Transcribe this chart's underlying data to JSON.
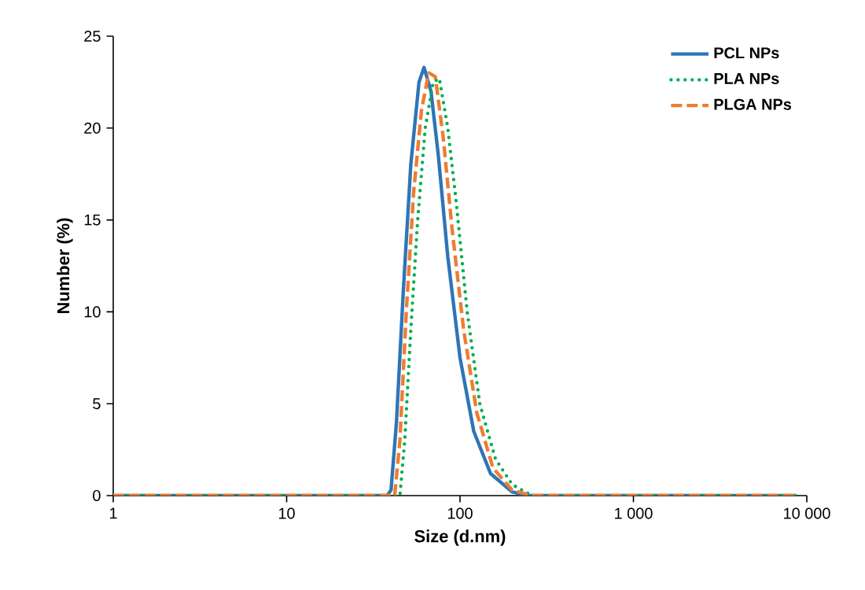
{
  "chart_data": {
    "type": "line",
    "xlabel": "Size (d.nm)",
    "ylabel": "Number (%)",
    "log": "x",
    "xlim": [
      1,
      10000
    ],
    "ylim": [
      0,
      25
    ],
    "xticks": [
      1,
      10,
      100,
      {
        "value": 1000,
        "label": "1 000"
      },
      {
        "value": 10000,
        "label": "10 000"
      }
    ],
    "yticks": [
      0,
      5,
      10,
      15,
      20,
      25
    ],
    "grid": false,
    "legend": "top right",
    "marker": "none",
    "series": [
      {
        "name": "PCL NPs",
        "color": "#2e75b6",
        "line_style": "solid",
        "x": [
          1,
          10,
          38,
          40,
          43,
          47,
          52,
          58,
          62,
          68,
          75,
          85,
          100,
          120,
          150,
          200,
          250,
          1000,
          8700
        ],
        "values": [
          0,
          0,
          0,
          0.3,
          4,
          11,
          18,
          22.5,
          23.3,
          22,
          18.5,
          13,
          7.5,
          3.5,
          1.2,
          0.2,
          0,
          0,
          0
        ]
      },
      {
        "name": "PLA NPs",
        "color": "#00b050",
        "line_style": "dotted",
        "x": [
          1,
          10,
          45,
          48,
          52,
          57,
          63,
          70,
          76,
          85,
          95,
          110,
          130,
          160,
          200,
          260,
          1000,
          8700
        ],
        "values": [
          0,
          0,
          0,
          3,
          9,
          15,
          20,
          22.5,
          22.7,
          20,
          16,
          10,
          5,
          2,
          0.6,
          0,
          0,
          0
        ]
      },
      {
        "name": "PLGA NPs",
        "color": "#ed7d31",
        "line_style": "dashed",
        "x": [
          1,
          10,
          42,
          45,
          49,
          54,
          60,
          66,
          72,
          80,
          90,
          105,
          125,
          155,
          200,
          260,
          1000,
          8700
        ],
        "values": [
          0,
          0,
          0,
          3,
          10,
          16.5,
          21,
          23,
          22.8,
          19.5,
          14.5,
          9,
          4.5,
          1.5,
          0.3,
          0,
          0,
          0
        ]
      }
    ]
  }
}
